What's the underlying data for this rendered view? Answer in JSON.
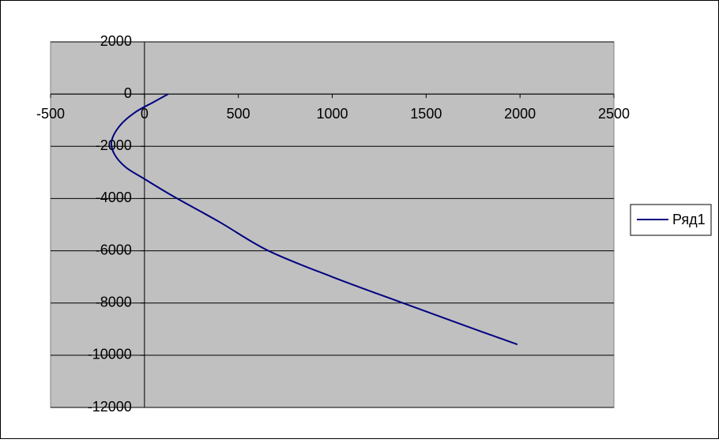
{
  "chart_data": {
    "type": "line",
    "x": [
      126,
      50,
      -50,
      -130,
      -175,
      -160,
      -100,
      0,
      150,
      400,
      660,
      1000,
      1376,
      1700,
      1986
    ],
    "series": [
      {
        "name": "Ряд1",
        "color": "#000080",
        "values": [
          0,
          -300,
          -700,
          -1200,
          -1800,
          -2300,
          -2800,
          -3250,
          -3900,
          -4900,
          -6000,
          -7000,
          -8000,
          -8850,
          -9586
        ]
      }
    ],
    "xlim": [
      -500,
      2500
    ],
    "xticks": [
      -500,
      0,
      500,
      1000,
      1500,
      2000,
      2500
    ],
    "ylim": [
      -12000,
      2000
    ],
    "yticks": [
      -12000,
      -10000,
      -8000,
      -6000,
      -4000,
      -2000,
      0,
      2000
    ],
    "grid": true,
    "legend": "right",
    "plot_background": "#c0c0c0"
  }
}
